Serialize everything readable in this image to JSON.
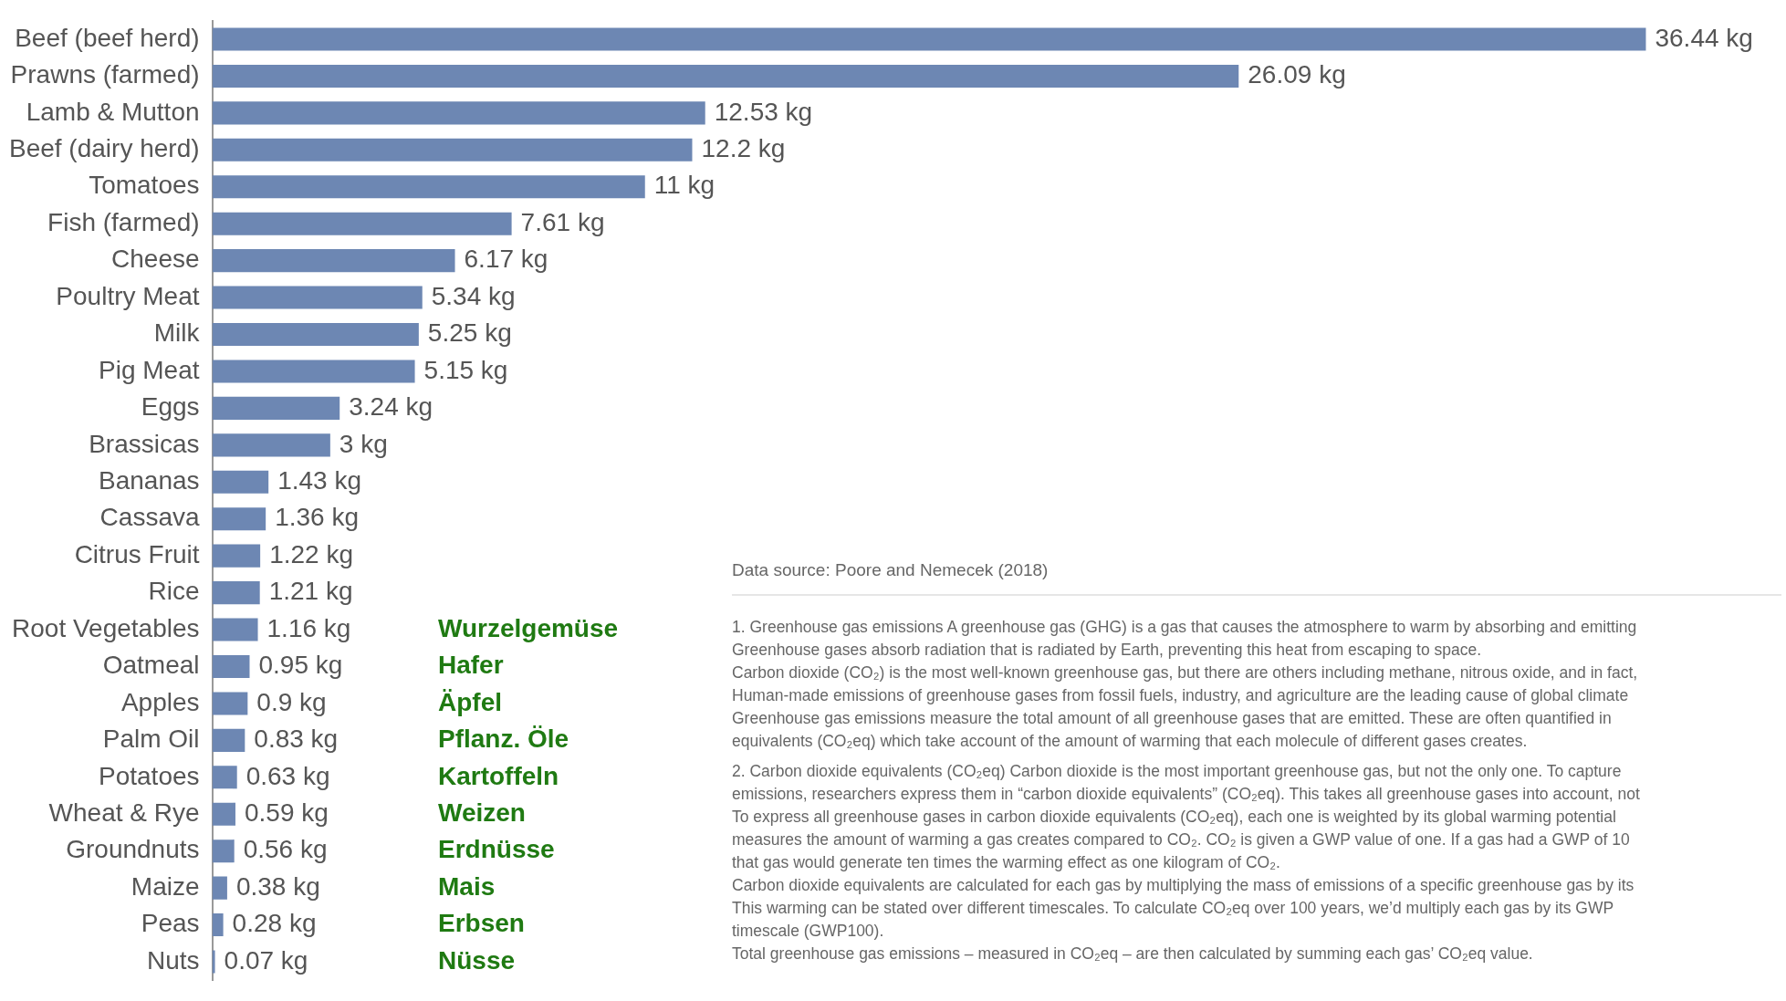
{
  "chart_data": {
    "type": "bar",
    "orientation": "horizontal",
    "categories": [
      "Beef (beef herd)",
      "Prawns (farmed)",
      "Lamb & Mutton",
      "Beef (dairy herd)",
      "Tomatoes",
      "Fish (farmed)",
      "Cheese",
      "Poultry Meat",
      "Milk",
      "Pig Meat",
      "Eggs",
      "Brassicas",
      "Bananas",
      "Cassava",
      "Citrus Fruit",
      "Rice",
      "Root Vegetables",
      "Oatmeal",
      "Apples",
      "Palm Oil",
      "Potatoes",
      "Wheat & Rye",
      "Groundnuts",
      "Maize",
      "Peas",
      "Nuts"
    ],
    "values": [
      36.44,
      26.09,
      12.53,
      12.2,
      11,
      7.61,
      6.17,
      5.34,
      5.25,
      5.15,
      3.24,
      3,
      1.43,
      1.36,
      1.22,
      1.21,
      1.16,
      0.95,
      0.9,
      0.83,
      0.63,
      0.59,
      0.56,
      0.38,
      0.28,
      0.07
    ],
    "value_labels": [
      "36.44 kg",
      "26.09 kg",
      "12.53 kg",
      "12.2 kg",
      "11 kg",
      "7.61 kg",
      "6.17 kg",
      "5.34 kg",
      "5.25 kg",
      "5.15 kg",
      "3.24 kg",
      "3 kg",
      "1.43 kg",
      "1.36 kg",
      "1.22 kg",
      "1.21 kg",
      "1.16 kg",
      "0.95 kg",
      "0.9 kg",
      "0.83 kg",
      "0.63 kg",
      "0.59 kg",
      "0.56 kg",
      "0.38 kg",
      "0.28 kg",
      "0.07 kg"
    ],
    "color": "#6d87b3",
    "legend": false,
    "annotations": [
      "Wurzelgemüse",
      "Hafer",
      "Äpfel",
      "Pflanz. Öle",
      "Kartoffeln",
      "Weizen",
      "Erdnüsse",
      "Mais",
      "Erbsen",
      "Nüsse",
      "Data source: Poore and Nemecek (2018)",
      "1. Greenhouse gas emissions A greenhouse gas (GHG) is a gas that causes the atmosphere to warm by absorbing and emitting",
      "Greenhouse gases absorb radiation that is radiated by Earth, preventing this heat from escaping to space.",
      "Carbon dioxide (CO₂) is the most well-known greenhouse gas, but there are others including methane, nitrous oxide, and in fact,",
      "Human-made emissions of greenhouse gases from fossil fuels, industry, and agriculture are the leading cause of global climate",
      "Greenhouse gas emissions measure the total amount of all greenhouse gases that are emitted. These are often quantified in",
      "equivalents (CO₂eq) which take account of the amount of warming that each molecule of different gases creates.",
      "2. Carbon dioxide equivalents (CO₂eq) Carbon dioxide is the most important greenhouse gas, but not the only one. To capture",
      "emissions, researchers express them in “carbon dioxide equivalents” (CO₂eq). This takes all greenhouse gases into account, not",
      "To express all greenhouse gases in carbon dioxide equivalents (CO₂eq), each one is weighted by its global warming potential",
      "measures the amount of warming a gas creates compared to CO₂. CO₂ is given a GWP value of one. If a gas had a GWP of 10",
      "that gas would generate ten times the warming effect as one kilogram of CO₂.",
      "Carbon dioxide equivalents are calculated for each gas by multiplying the mass of emissions of a specific greenhouse gas by its",
      "This warming can be stated over different timescales. To calculate CO₂eq over 100 years, we’d multiply each gas by its GWP",
      "timescale (GWP100).",
      "Total greenhouse gas emissions – measured in CO₂eq – are then calculated by summing each gas’ CO₂eq value."
    ]
  }
}
